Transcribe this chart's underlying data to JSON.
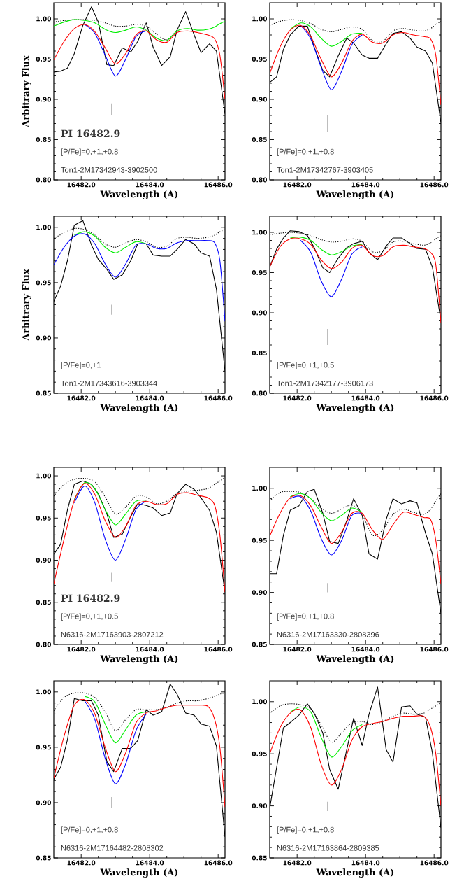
{
  "chart_data": [
    {
      "type": "line",
      "xlabel": "Wavelength (A)",
      "ylabel": "Arbitrary Flux",
      "xlim": [
        16481.2,
        16486.2
      ],
      "ylim": [
        0.8,
        1.02
      ],
      "xticks": [
        {
          "value": 16482,
          "label": "16482.0"
        },
        {
          "value": 16484,
          "label": "16484.0"
        },
        {
          "value": 16486,
          "label": "16486.0"
        }
      ],
      "yticks": [
        {
          "value": 0.8,
          "label": "0.80"
        },
        {
          "value": 0.85,
          "label": "0.85"
        },
        {
          "value": 0.9,
          "label": "0.90"
        },
        {
          "value": 0.95,
          "label": "0.95"
        },
        {
          "value": 1.0,
          "label": "1.00"
        }
      ],
      "annotations": [
        "PI 16482.9",
        "[P/Fe]=0,+1,+0.8",
        "Ton1-2M17342943-3902500"
      ],
      "x": [
        16481.2,
        16481.5,
        16481.8,
        16482.1,
        16482.4,
        16482.7,
        16483.0,
        16483.3,
        16483.6,
        16483.9,
        16484.2,
        16484.5,
        16484.8,
        16485.1,
        16485.4,
        16485.7,
        16485.9,
        16486.05,
        16486.2
      ],
      "series": [
        {
          "color": "#000000",
          "x": [
            16481.2,
            16481.4,
            16481.6,
            16481.8,
            16482.05,
            16482.3,
            16482.5,
            16482.75,
            16482.95,
            16483.2,
            16483.45,
            16483.65,
            16483.9,
            16484.1,
            16484.35,
            16484.6,
            16484.8,
            16485.05,
            16485.3,
            16485.5,
            16485.75,
            16485.95,
            16486.2
          ],
          "values": [
            0.934,
            0.935,
            0.939,
            0.957,
            0.992,
            1.015,
            0.996,
            0.943,
            0.942,
            0.964,
            0.959,
            0.972,
            0.995,
            0.965,
            0.942,
            0.953,
            0.986,
            1.009,
            0.98,
            0.958,
            0.969,
            0.96,
            0.882
          ]
        },
        {
          "color": "#000000",
          "line_style": "dotted",
          "values": [
            0.996,
            0.998,
            0.999,
            0.999,
            0.998,
            0.995,
            0.991,
            0.991,
            0.993,
            0.991,
            0.981,
            0.974,
            0.986,
            null,
            null,
            null,
            null,
            null,
            null
          ]
        },
        {
          "color": "#00ee00",
          "values": [
            0.991,
            0.996,
            0.999,
            0.998,
            0.995,
            0.987,
            0.983,
            0.986,
            0.99,
            0.986,
            0.976,
            0.973,
            0.985,
            0.988,
            0.986,
            0.987,
            0.99,
            0.994,
            0.997
          ]
        },
        {
          "color": "#0000ff",
          "values": [
            null,
            null,
            null,
            0.993,
            0.982,
            0.955,
            0.929,
            0.95,
            0.978,
            0.985,
            null,
            null,
            null,
            null,
            null,
            null,
            null,
            null,
            null
          ]
        },
        {
          "color": "#ff0000",
          "values": [
            0.949,
            0.972,
            0.988,
            0.993,
            0.984,
            0.964,
            0.944,
            0.957,
            0.98,
            0.985,
            0.974,
            0.971,
            0.983,
            0.985,
            0.983,
            0.98,
            0.975,
            0.955,
            0.9
          ]
        },
        {
          "color": "#000000",
          "x": [
            16482.9,
            16482.9
          ],
          "values": [
            0.88,
            0.895
          ]
        }
      ]
    },
    {
      "type": "line",
      "xlabel": "Wavelength (A)",
      "xlim": [
        16481.2,
        16486.2
      ],
      "ylim": [
        0.8,
        1.02
      ],
      "xticks": [
        {
          "value": 16482,
          "label": "16482.0"
        },
        {
          "value": 16484,
          "label": "16484.0"
        },
        {
          "value": 16486,
          "label": "16486.0"
        }
      ],
      "yticks": [
        {
          "value": 0.8,
          "label": "0.80"
        },
        {
          "value": 0.85,
          "label": "0.85"
        },
        {
          "value": 0.9,
          "label": "0.90"
        },
        {
          "value": 0.95,
          "label": "0.95"
        },
        {
          "value": 1.0,
          "label": "1.00"
        }
      ],
      "annotations": [
        "[P/Fe]=0,+1,+0.8",
        "Ton1-2M17342767-3903405"
      ],
      "x": [
        16481.2,
        16481.5,
        16481.8,
        16482.1,
        16482.4,
        16482.7,
        16483.0,
        16483.3,
        16483.6,
        16483.9,
        16484.2,
        16484.5,
        16484.8,
        16485.1,
        16485.4,
        16485.7,
        16485.9,
        16486.05,
        16486.2
      ],
      "series": [
        {
          "color": "#000000",
          "x": [
            16481.2,
            16481.4,
            16481.6,
            16481.8,
            16482.05,
            16482.3,
            16482.5,
            16482.75,
            16482.95,
            16483.2,
            16483.45,
            16483.65,
            16483.9,
            16484.1,
            16484.35,
            16484.6,
            16484.8,
            16485.05,
            16485.3,
            16485.5,
            16485.75,
            16485.95,
            16486.2
          ],
          "values": [
            0.921,
            0.928,
            0.962,
            0.98,
            0.991,
            0.991,
            0.965,
            0.936,
            0.928,
            0.954,
            0.976,
            0.97,
            0.955,
            0.951,
            0.951,
            0.969,
            0.982,
            0.984,
            0.976,
            0.965,
            0.96,
            0.945,
            0.871
          ]
        },
        {
          "color": "#000000",
          "line_style": "dotted",
          "values": [
            0.992,
            0.997,
            0.999,
            0.998,
            0.994,
            0.987,
            0.984,
            0.987,
            0.99,
            0.987,
            0.973,
            0.972,
            0.985,
            0.988,
            0.986,
            0.985,
            0.988,
            0.993,
            0.997
          ]
        },
        {
          "color": "#00ee00",
          "values": [
            null,
            null,
            0.987,
            0.995,
            0.99,
            0.976,
            0.966,
            0.972,
            0.981,
            0.982,
            null,
            null,
            null,
            null,
            null,
            null,
            null,
            null,
            null
          ]
        },
        {
          "color": "#0000ff",
          "values": [
            null,
            null,
            null,
            0.992,
            0.975,
            0.94,
            0.912,
            0.935,
            0.968,
            0.98,
            null,
            null,
            null,
            null,
            null,
            null,
            null,
            null,
            null
          ]
        },
        {
          "color": "#ff0000",
          "values": [
            0.932,
            0.965,
            0.986,
            0.992,
            0.978,
            0.95,
            0.928,
            0.945,
            0.972,
            0.981,
            0.971,
            0.97,
            0.98,
            0.983,
            0.98,
            0.978,
            0.975,
            0.955,
            0.893
          ]
        },
        {
          "color": "#000000",
          "x": [
            16482.9,
            16482.9
          ],
          "values": [
            0.86,
            0.88
          ]
        }
      ]
    },
    {
      "type": "line",
      "xlabel": "Wavelength (A)",
      "ylabel": "Arbitrary Flux",
      "xlim": [
        16481.2,
        16486.2
      ],
      "ylim": [
        0.85,
        1.01
      ],
      "xticks": [
        {
          "value": 16482,
          "label": "16482.0"
        },
        {
          "value": 16484,
          "label": "16484.0"
        },
        {
          "value": 16486,
          "label": "16486.0"
        }
      ],
      "yticks": [
        {
          "value": 0.85,
          "label": "0.85"
        },
        {
          "value": 0.9,
          "label": "0.90"
        },
        {
          "value": 0.95,
          "label": "0.95"
        },
        {
          "value": 1.0,
          "label": "1.00"
        }
      ],
      "annotations": [
        "[P/Fe]=0,+1",
        "Ton1-2M17343616-3903344"
      ],
      "x": [
        16481.2,
        16481.5,
        16481.8,
        16482.1,
        16482.4,
        16482.7,
        16483.0,
        16483.3,
        16483.6,
        16483.9,
        16484.2,
        16484.5,
        16484.8,
        16485.1,
        16485.4,
        16485.7,
        16485.9,
        16486.05,
        16486.2
      ],
      "series": [
        {
          "color": "#000000",
          "x": [
            16481.2,
            16481.4,
            16481.6,
            16481.8,
            16482.05,
            16482.3,
            16482.5,
            16482.75,
            16482.95,
            16483.2,
            16483.45,
            16483.65,
            16483.9,
            16484.1,
            16484.35,
            16484.6,
            16484.8,
            16485.05,
            16485.3,
            16485.5,
            16485.75,
            16485.95,
            16486.2
          ],
          "values": [
            0.933,
            0.947,
            0.97,
            1.002,
            1.006,
            0.984,
            0.971,
            0.962,
            0.953,
            0.957,
            0.97,
            0.985,
            0.985,
            0.975,
            0.974,
            0.974,
            0.98,
            0.989,
            0.985,
            0.977,
            0.974,
            0.944,
            0.87
          ]
        },
        {
          "color": "#000000",
          "line_style": "dotted",
          "values": [
            0.99,
            0.995,
            0.999,
            0.998,
            0.993,
            0.985,
            0.982,
            0.986,
            0.989,
            0.987,
            0.982,
            0.983,
            0.99,
            0.991,
            0.99,
            0.991,
            0.993,
            0.996,
            0.998
          ]
        },
        {
          "color": "#00ee00",
          "values": [
            null,
            null,
            0.993,
            0.996,
            0.992,
            0.982,
            0.977,
            0.982,
            0.987,
            0.985,
            null,
            null,
            null,
            null,
            null,
            null,
            null,
            null,
            null
          ]
        },
        {
          "color": "#0000ff",
          "values": [
            0.966,
            0.982,
            0.992,
            0.994,
            0.985,
            0.967,
            0.955,
            0.967,
            0.984,
            0.985,
            0.981,
            0.981,
            0.986,
            0.988,
            0.988,
            0.988,
            0.986,
            0.97,
            0.915
          ]
        },
        {
          "color": "#000000",
          "x": [
            16482.9,
            16482.9
          ],
          "values": [
            0.921,
            0.93
          ]
        }
      ]
    },
    {
      "type": "line",
      "xlabel": "Wavelength (A)",
      "xlim": [
        16481.2,
        16486.2
      ],
      "ylim": [
        0.8,
        1.02
      ],
      "xticks": [
        {
          "value": 16482,
          "label": "16482.0"
        },
        {
          "value": 16484,
          "label": "16484.0"
        },
        {
          "value": 16486,
          "label": "16486.0"
        }
      ],
      "yticks": [
        {
          "value": 0.8,
          "label": "0.80"
        },
        {
          "value": 0.85,
          "label": "0.85"
        },
        {
          "value": 0.9,
          "label": "0.90"
        },
        {
          "value": 0.95,
          "label": "0.95"
        },
        {
          "value": 1.0,
          "label": "1.00"
        }
      ],
      "annotations": [
        "[P/Fe]=0,+1,+0.5",
        "Ton1-2M17342177-3906173"
      ],
      "x": [
        16481.2,
        16481.5,
        16481.8,
        16482.1,
        16482.4,
        16482.7,
        16483.0,
        16483.3,
        16483.6,
        16483.9,
        16484.2,
        16484.5,
        16484.8,
        16485.1,
        16485.4,
        16485.7,
        16485.9,
        16486.05,
        16486.2
      ],
      "series": [
        {
          "color": "#000000",
          "x": [
            16481.2,
            16481.4,
            16481.6,
            16481.8,
            16482.05,
            16482.3,
            16482.5,
            16482.75,
            16482.95,
            16483.2,
            16483.45,
            16483.65,
            16483.9,
            16484.1,
            16484.35,
            16484.6,
            16484.8,
            16485.05,
            16485.3,
            16485.5,
            16485.75,
            16485.95,
            16486.2
          ],
          "values": [
            0.957,
            0.979,
            0.993,
            1.002,
            1.001,
            0.996,
            0.981,
            0.956,
            0.95,
            0.968,
            0.981,
            0.986,
            0.989,
            0.975,
            0.966,
            0.983,
            0.993,
            0.993,
            0.986,
            0.98,
            0.979,
            0.957,
            0.89
          ]
        },
        {
          "color": "#000000",
          "line_style": "dotted",
          "values": [
            0.997,
            0.999,
            1.0,
            0.999,
            0.996,
            0.991,
            0.988,
            0.989,
            0.992,
            0.989,
            0.976,
            0.977,
            0.988,
            0.989,
            0.986,
            0.984,
            0.987,
            0.992,
            0.996
          ]
        },
        {
          "color": "#00ee00",
          "values": [
            null,
            null,
            0.993,
            0.994,
            0.99,
            0.979,
            0.972,
            0.976,
            0.983,
            0.985,
            null,
            null,
            null,
            null,
            null,
            null,
            null,
            null,
            null
          ]
        },
        {
          "color": "#0000ff",
          "values": [
            null,
            null,
            null,
            0.99,
            0.975,
            0.94,
            0.92,
            0.942,
            0.973,
            0.982,
            null,
            null,
            null,
            null,
            null,
            null,
            null,
            null,
            null
          ]
        },
        {
          "color": "#ff0000",
          "values": [
            0.957,
            0.982,
            0.992,
            0.992,
            0.985,
            0.966,
            0.955,
            0.963,
            0.98,
            0.984,
            0.971,
            0.971,
            0.982,
            0.984,
            0.982,
            0.98,
            0.975,
            0.96,
            0.887
          ]
        },
        {
          "color": "#000000",
          "x": [
            16482.9,
            16482.9
          ],
          "values": [
            0.86,
            0.88
          ]
        }
      ]
    },
    {
      "type": "line",
      "xlabel": "Wavelength (A)",
      "xlim": [
        16481.2,
        16486.2
      ],
      "ylim": [
        0.8,
        1.01
      ],
      "xticks": [
        {
          "value": 16482,
          "label": "16482.0"
        },
        {
          "value": 16484,
          "label": "16484.0"
        },
        {
          "value": 16486,
          "label": "16486.0"
        }
      ],
      "yticks": [
        {
          "value": 0.8,
          "label": "0.80"
        },
        {
          "value": 0.85,
          "label": "0.85"
        },
        {
          "value": 0.9,
          "label": "0.90"
        },
        {
          "value": 0.95,
          "label": "0.95"
        },
        {
          "value": 1.0,
          "label": "1.00"
        }
      ],
      "annotations": [
        "PI 16482.9",
        "[P/Fe]=0,+1,+0.5",
        "N6316-2M17163903-2807212"
      ],
      "x": [
        16481.2,
        16481.5,
        16481.8,
        16482.1,
        16482.4,
        16482.7,
        16483.0,
        16483.3,
        16483.6,
        16483.9,
        16484.2,
        16484.5,
        16484.8,
        16485.1,
        16485.4,
        16485.7,
        16485.9,
        16486.05,
        16486.2
      ],
      "series": [
        {
          "color": "#000000",
          "x": [
            16481.2,
            16481.4,
            16481.6,
            16481.8,
            16482.05,
            16482.3,
            16482.5,
            16482.75,
            16482.95,
            16483.2,
            16483.45,
            16483.65,
            16483.9,
            16484.1,
            16484.35,
            16484.6,
            16484.8,
            16485.05,
            16485.3,
            16485.5,
            16485.75,
            16485.95,
            16486.2
          ],
          "values": [
            0.907,
            0.919,
            0.96,
            0.99,
            0.994,
            0.99,
            0.979,
            0.955,
            0.927,
            0.931,
            0.952,
            0.967,
            0.965,
            0.962,
            0.953,
            0.956,
            0.979,
            0.99,
            0.984,
            0.974,
            0.959,
            0.933,
            0.862
          ]
        },
        {
          "color": "#000000",
          "line_style": "dotted",
          "values": [
            0.976,
            0.99,
            0.996,
            0.997,
            0.993,
            0.975,
            0.955,
            0.963,
            0.976,
            0.975,
            0.967,
            0.97,
            0.979,
            0.982,
            0.983,
            0.985,
            0.99,
            0.994,
            0.998
          ]
        },
        {
          "color": "#00ee00",
          "values": [
            null,
            null,
            0.972,
            0.992,
            0.985,
            0.96,
            0.942,
            0.955,
            0.97,
            0.971,
            null,
            null,
            null,
            null,
            null,
            null,
            null,
            null,
            null
          ]
        },
        {
          "color": "#0000ff",
          "values": [
            null,
            null,
            0.968,
            0.988,
            0.968,
            0.925,
            0.9,
            0.925,
            0.96,
            0.97,
            null,
            null,
            null,
            null,
            null,
            null,
            null,
            null,
            null
          ]
        },
        {
          "color": "#ff0000",
          "values": [
            0.872,
            0.925,
            0.971,
            0.991,
            0.978,
            0.947,
            0.927,
            0.94,
            0.965,
            0.97,
            0.966,
            0.967,
            0.978,
            0.98,
            0.977,
            0.974,
            0.965,
            0.93,
            0.862
          ]
        },
        {
          "color": "#000000",
          "x": [
            16482.9,
            16482.9
          ],
          "values": [
            0.875,
            0.885
          ]
        }
      ]
    },
    {
      "type": "line",
      "xlabel": "Wavelength (A)",
      "xlim": [
        16481.2,
        16486.2
      ],
      "ylim": [
        0.85,
        1.02
      ],
      "xticks": [
        {
          "value": 16482,
          "label": "16482.0"
        },
        {
          "value": 16484,
          "label": "16484.0"
        },
        {
          "value": 16486,
          "label": "16486.0"
        }
      ],
      "yticks": [
        {
          "value": 0.85,
          "label": "0.85"
        },
        {
          "value": 0.9,
          "label": "0.90"
        },
        {
          "value": 0.95,
          "label": "0.95"
        },
        {
          "value": 1.0,
          "label": "1.00"
        }
      ],
      "annotations": [
        "[P/Fe]=0,+1,+0.8",
        "N6316-2M17163330-2808396"
      ],
      "x": [
        16481.2,
        16481.5,
        16481.8,
        16482.1,
        16482.4,
        16482.7,
        16483.0,
        16483.3,
        16483.6,
        16483.9,
        16484.2,
        16484.5,
        16484.8,
        16485.1,
        16485.4,
        16485.7,
        16485.9,
        16486.05,
        16486.2
      ],
      "series": [
        {
          "color": "#000000",
          "x": [
            16481.2,
            16481.4,
            16481.6,
            16481.8,
            16482.05,
            16482.3,
            16482.5,
            16482.75,
            16482.95,
            16483.2,
            16483.45,
            16483.65,
            16483.9,
            16484.1,
            16484.35,
            16484.6,
            16484.8,
            16485.05,
            16485.3,
            16485.5,
            16485.75,
            16485.95,
            16486.2
          ],
          "values": [
            0.918,
            0.918,
            0.955,
            0.979,
            0.983,
            0.997,
            0.999,
            0.976,
            0.949,
            0.947,
            0.969,
            0.99,
            0.974,
            0.937,
            0.932,
            0.97,
            0.99,
            0.985,
            0.988,
            0.986,
            0.957,
            0.937,
            0.88
          ]
        },
        {
          "color": "#000000",
          "line_style": "dotted",
          "values": [
            0.988,
            0.996,
            0.997,
            0.996,
            0.99,
            0.981,
            0.976,
            0.98,
            0.984,
            0.975,
            0.955,
            0.96,
            0.975,
            0.98,
            0.977,
            0.975,
            0.98,
            0.988,
            0.995
          ]
        },
        {
          "color": "#00ee00",
          "values": [
            null,
            null,
            0.992,
            0.995,
            0.99,
            0.977,
            0.969,
            0.974,
            0.981,
            0.977,
            null,
            null,
            null,
            null,
            null,
            null,
            null,
            null,
            null
          ]
        },
        {
          "color": "#0000ff",
          "values": [
            null,
            null,
            0.99,
            0.992,
            0.978,
            0.952,
            0.936,
            0.95,
            0.974,
            0.976,
            null,
            null,
            null,
            null,
            null,
            null,
            null,
            null,
            null
          ]
        },
        {
          "color": "#ff0000",
          "values": [
            0.954,
            0.976,
            0.991,
            0.993,
            0.983,
            0.963,
            0.947,
            0.958,
            0.976,
            0.976,
            0.96,
            0.951,
            0.965,
            0.977,
            0.975,
            0.972,
            0.97,
            0.95,
            0.908
          ]
        },
        {
          "color": "#000000",
          "x": [
            16482.9,
            16482.9
          ],
          "values": [
            0.9,
            0.909
          ]
        }
      ]
    },
    {
      "type": "line",
      "xlabel": "Wavelength (A)",
      "xlim": [
        16481.2,
        16486.2
      ],
      "ylim": [
        0.85,
        1.01
      ],
      "xticks": [
        {
          "value": 16482,
          "label": "16482.0"
        },
        {
          "value": 16484,
          "label": "16484.0"
        },
        {
          "value": 16486,
          "label": "16486.0"
        }
      ],
      "yticks": [
        {
          "value": 0.85,
          "label": "0.85"
        },
        {
          "value": 0.9,
          "label": "0.90"
        },
        {
          "value": 0.95,
          "label": "0.95"
        },
        {
          "value": 1.0,
          "label": "1.00"
        }
      ],
      "annotations": [
        "[P/Fe]=0,+1,+0.8",
        "N6316-2M17164482-2808302"
      ],
      "x": [
        16481.2,
        16481.5,
        16481.8,
        16482.1,
        16482.4,
        16482.7,
        16483.0,
        16483.3,
        16483.6,
        16483.9,
        16484.2,
        16484.5,
        16484.8,
        16485.1,
        16485.4,
        16485.7,
        16485.9,
        16486.05,
        16486.2
      ],
      "series": [
        {
          "color": "#000000",
          "x": [
            16481.2,
            16481.4,
            16481.6,
            16481.8,
            16482.05,
            16482.3,
            16482.5,
            16482.75,
            16482.95,
            16483.2,
            16483.45,
            16483.65,
            16483.9,
            16484.1,
            16484.35,
            16484.6,
            16484.8,
            16485.05,
            16485.3,
            16485.5,
            16485.75,
            16485.95,
            16486.2
          ],
          "values": [
            0.921,
            0.932,
            0.957,
            0.994,
            0.992,
            0.992,
            0.979,
            0.937,
            0.928,
            0.949,
            0.949,
            0.956,
            0.984,
            0.979,
            0.982,
            1.007,
            0.998,
            0.981,
            0.979,
            0.971,
            0.969,
            0.951,
            0.869
          ]
        },
        {
          "color": "#000000",
          "line_style": "dotted",
          "values": [
            0.983,
            0.995,
            0.999,
            0.999,
            0.995,
            0.982,
            0.965,
            0.975,
            0.984,
            0.984,
            0.984,
            0.986,
            0.99,
            0.992,
            0.992,
            0.994,
            0.996,
            0.998,
            0.999
          ]
        },
        {
          "color": "#00ee00",
          "values": [
            null,
            null,
            null,
            0.996,
            0.991,
            0.971,
            0.954,
            0.966,
            0.979,
            0.982,
            null,
            null,
            null,
            null,
            null,
            null,
            null,
            null,
            null
          ]
        },
        {
          "color": "#0000ff",
          "values": [
            null,
            null,
            null,
            0.992,
            0.975,
            0.94,
            0.917,
            0.935,
            0.965,
            0.98,
            null,
            null,
            null,
            null,
            null,
            null,
            null,
            null,
            null
          ]
        },
        {
          "color": "#ff0000",
          "values": [
            0.922,
            0.96,
            0.988,
            0.993,
            0.98,
            0.95,
            0.928,
            0.945,
            0.972,
            0.981,
            0.983,
            0.986,
            0.988,
            0.988,
            0.988,
            0.987,
            0.975,
            0.95,
            0.896
          ]
        },
        {
          "color": "#000000",
          "x": [
            16482.9,
            16482.9
          ],
          "values": [
            0.895,
            0.905
          ]
        }
      ]
    },
    {
      "type": "line",
      "xlabel": "Wavelength (A)",
      "xlim": [
        16481.2,
        16486.2
      ],
      "ylim": [
        0.85,
        1.02
      ],
      "xticks": [
        {
          "value": 16482,
          "label": "16482.0"
        },
        {
          "value": 16484,
          "label": "16484.0"
        },
        {
          "value": 16486,
          "label": "16486.0"
        }
      ],
      "yticks": [
        {
          "value": 0.85,
          "label": "0.85"
        },
        {
          "value": 0.9,
          "label": "0.90"
        },
        {
          "value": 0.95,
          "label": "0.95"
        },
        {
          "value": 1.0,
          "label": "1.00"
        }
      ],
      "annotations": [
        "[P/Fe]=0,+1,+0.8",
        "N6316-2M17163864-2809385"
      ],
      "x": [
        16481.2,
        16481.5,
        16481.8,
        16482.1,
        16482.4,
        16482.7,
        16483.0,
        16483.3,
        16483.6,
        16483.9,
        16484.2,
        16484.5,
        16484.8,
        16485.1,
        16485.4,
        16485.7,
        16485.9,
        16486.05,
        16486.2
      ],
      "series": [
        {
          "color": "#000000",
          "x": [
            16481.2,
            16481.6,
            16481.8,
            16482.05,
            16482.3,
            16482.5,
            16482.75,
            16482.95,
            16483.2,
            16483.45,
            16483.65,
            16483.9,
            16484.1,
            16484.35,
            16484.6,
            16484.8,
            16485.05,
            16485.3,
            16485.5,
            16485.75,
            16485.95,
            16486.2
          ],
          "values": [
            0.898,
            0.975,
            0.98,
            0.987,
            0.998,
            0.989,
            0.97,
            0.935,
            0.916,
            0.954,
            0.984,
            0.958,
            0.988,
            1.014,
            0.954,
            0.942,
            0.995,
            0.996,
            0.988,
            0.985,
            0.951,
            0.879
          ]
        },
        {
          "color": "#000000",
          "line_style": "dotted",
          "values": [
            0.989,
            0.996,
            0.998,
            0.997,
            0.993,
            0.978,
            0.961,
            0.97,
            0.98,
            0.981,
            0.978,
            0.981,
            0.986,
            0.989,
            0.988,
            0.989,
            0.993,
            0.996,
            0.999
          ]
        },
        {
          "color": "#00ee00",
          "values": [
            null,
            null,
            0.99,
            0.995,
            0.99,
            0.966,
            0.947,
            0.957,
            0.972,
            0.978,
            null,
            null,
            null,
            null,
            null,
            null,
            null,
            null,
            null
          ]
        },
        {
          "color": "#ff0000",
          "values": [
            0.95,
            0.975,
            0.989,
            0.992,
            0.975,
            0.94,
            0.92,
            0.935,
            0.963,
            0.976,
            0.979,
            0.981,
            0.984,
            0.986,
            0.986,
            0.986,
            0.975,
            0.95,
            0.9
          ]
        },
        {
          "color": "#000000",
          "x": [
            16482.9,
            16482.9
          ],
          "values": [
            0.895,
            0.904
          ]
        }
      ]
    }
  ]
}
